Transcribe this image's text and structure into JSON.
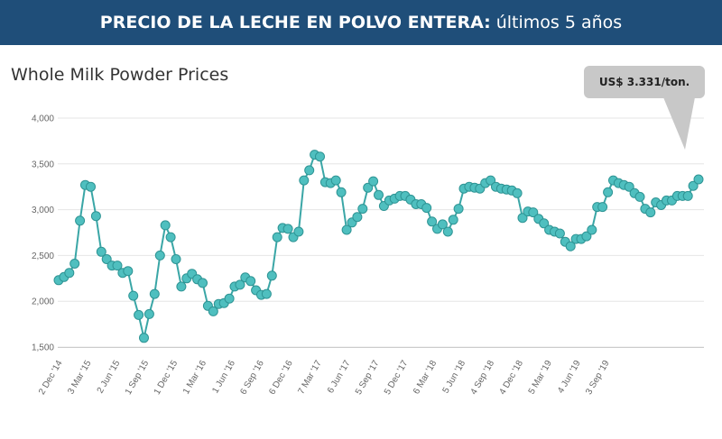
{
  "banner": {
    "bold_text": "PRECIO DE LA LECHE EN POLVO ENTERA:",
    "normal_text": "últimos 5 años",
    "color": "#1f4e79"
  },
  "callout": {
    "text": "US$ 3.331/ton."
  },
  "chart_data": {
    "type": "line",
    "title": "Whole Milk Powder Prices",
    "xlabel": "",
    "ylabel": "",
    "ylim": [
      1500,
      4000
    ],
    "yticks": [
      "1,500",
      "2,000",
      "2,500",
      "3,000",
      "3,500",
      "4,000"
    ],
    "xticks": [
      "2 Dec '14",
      "3 Mar '15",
      "2 Jun '15",
      "1 Sep '15",
      "1 Dec '15",
      "1 Mar '16",
      "1 Jun '16",
      "6 Sep '16",
      "6 Dec '16",
      "7 Mar '17",
      "6 Jun '17",
      "5 Sep '17",
      "5 Dec '17",
      "6 Mar '18",
      "5 Jun '18",
      "4 Sep '18",
      "4 Dec '18",
      "5 Mar '19",
      "4 Jun '19",
      "3 Sep '19"
    ],
    "grid": true,
    "line_color": "#3aa6a6",
    "marker_color": "#4fbfbf",
    "series": [
      {
        "values": [
          2230,
          2265,
          2310,
          2410,
          2880,
          3270,
          3250,
          2930,
          2540,
          2460,
          2390,
          2390,
          2310,
          2330,
          2060,
          1850,
          1600,
          1860,
          2080,
          2500,
          2830,
          2700,
          2460,
          2160,
          2250,
          2300,
          2240,
          2200,
          1950,
          1890,
          1970,
          1980,
          2030,
          2160,
          2180,
          2260,
          2220,
          2120,
          2070,
          2080,
          2280,
          2700,
          2800,
          2790,
          2700,
          2760,
          3320,
          3430,
          3600,
          3580,
          3300,
          3290,
          3320,
          3190,
          2780,
          2860,
          2920,
          3010,
          3240,
          3310,
          3160,
          3040,
          3100,
          3120,
          3150,
          3150,
          3110,
          3060,
          3060,
          3020,
          2870,
          2790,
          2840,
          2760,
          2890,
          3010,
          3230,
          3250,
          3240,
          3230,
          3290,
          3320,
          3250,
          3230,
          3220,
          3210,
          3180,
          2910,
          2980,
          2970,
          2900,
          2850,
          2780,
          2760,
          2740,
          2650,
          2600,
          2680,
          2680,
          2710,
          2780,
          3030,
          3030,
          3190,
          3320,
          3290,
          3270,
          3250,
          3180,
          3140,
          3010,
          2970,
          3080,
          3050,
          3100,
          3100,
          3150,
          3150,
          3150,
          3260,
          3331
        ]
      }
    ]
  }
}
